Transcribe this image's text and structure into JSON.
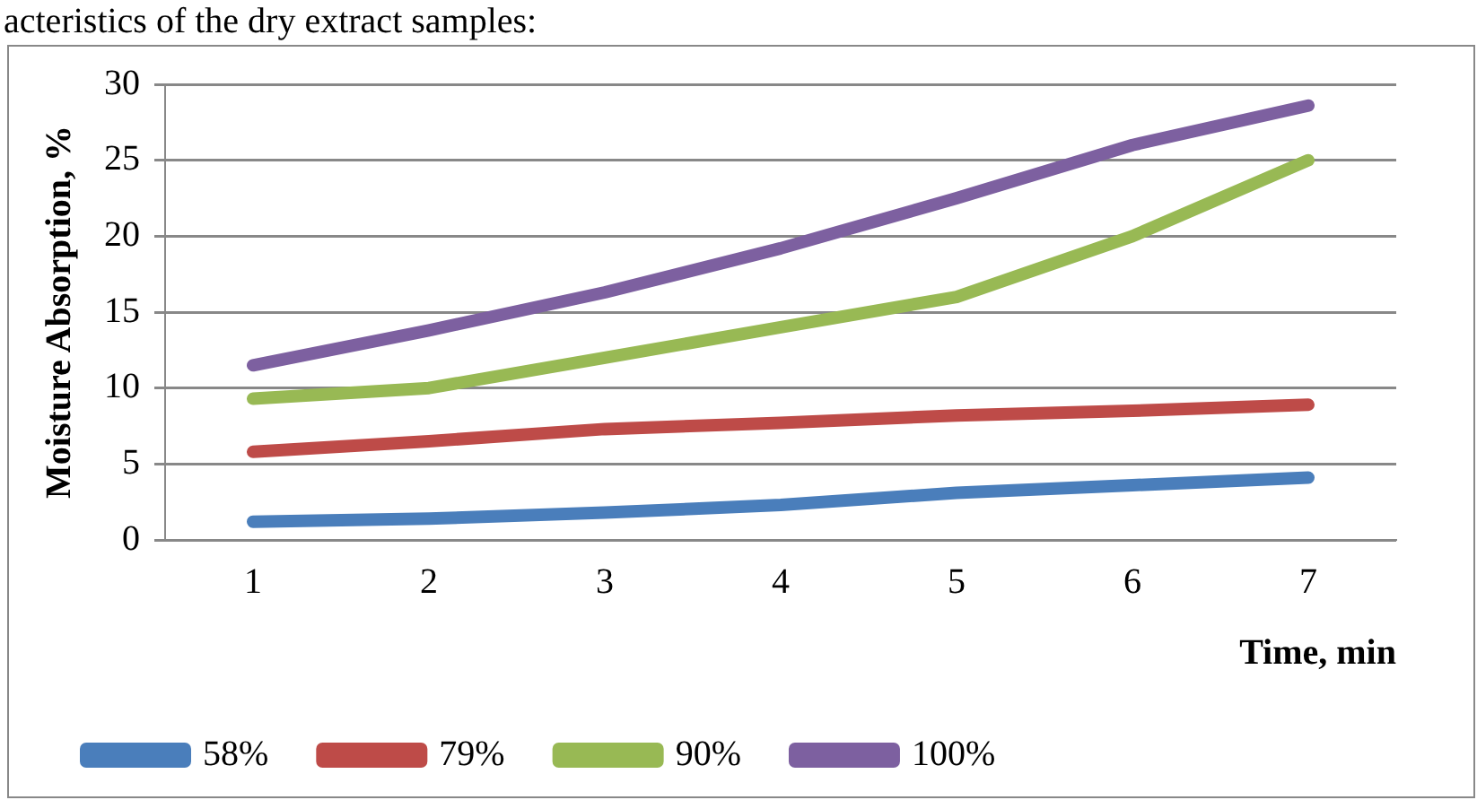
{
  "chart_data": {
    "type": "line",
    "xlabel": "Time, min",
    "ylabel": "Moisture Absorption, %",
    "annotations": [
      "acteristics of the dry extract samples:"
    ],
    "categories": [
      "1",
      "2",
      "3",
      "4",
      "5",
      "6",
      "7"
    ],
    "series": [
      {
        "name": "58%",
        "color": "#4a7ebb",
        "values": [
          1.2,
          1.4,
          1.8,
          2.3,
          3.1,
          3.6,
          4.1
        ]
      },
      {
        "name": "79%",
        "color": "#be4b48",
        "values": [
          5.8,
          6.5,
          7.3,
          7.7,
          8.2,
          8.5,
          8.9
        ]
      },
      {
        "name": "90%",
        "color": "#98b954",
        "values": [
          9.3,
          10,
          12,
          14,
          16,
          20,
          25
        ]
      },
      {
        "name": "100%",
        "color": "#7d60a0",
        "values": [
          11.5,
          13.8,
          16.3,
          19.2,
          22.5,
          26,
          28.6
        ]
      }
    ],
    "ylim": [
      0,
      30
    ],
    "yticks": [
      0,
      5,
      10,
      15,
      20,
      25,
      30
    ],
    "grid": "y",
    "legend": "bottom",
    "line_style": "solid"
  }
}
